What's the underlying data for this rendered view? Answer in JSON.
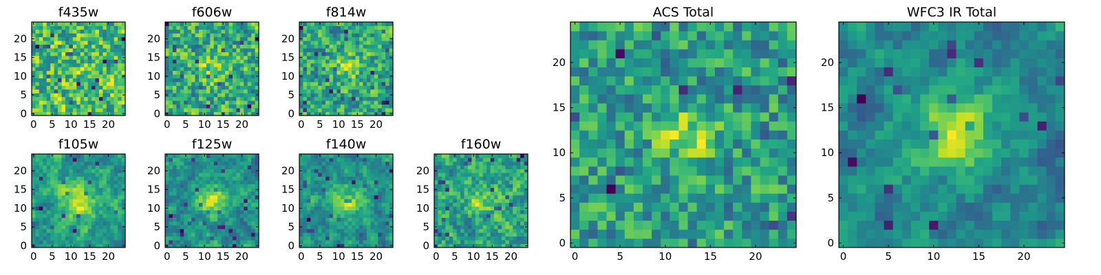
{
  "chart_data": [
    {
      "type": "heatmap",
      "title": "f435w",
      "xticks": [
        "0",
        "5",
        "10",
        "15",
        "20"
      ],
      "yticks": [
        "0",
        "5",
        "10",
        "15",
        "20"
      ],
      "xlim": [
        -0.5,
        24.5
      ],
      "ylim": [
        -0.5,
        24.5
      ],
      "grid_size": 25,
      "colormap": "viridis",
      "center_strength": 0.05,
      "center_width": 3.0,
      "smooth": 0.3,
      "seed": 11
    },
    {
      "type": "heatmap",
      "title": "f606w",
      "xticks": [
        "0",
        "5",
        "10",
        "15",
        "20"
      ],
      "yticks": [
        "0",
        "5",
        "10",
        "15",
        "20"
      ],
      "xlim": [
        -0.5,
        24.5
      ],
      "ylim": [
        -0.5,
        24.5
      ],
      "grid_size": 25,
      "colormap": "viridis",
      "center_strength": 0.35,
      "center_width": 2.5,
      "smooth": 0.3,
      "seed": 23
    },
    {
      "type": "heatmap",
      "title": "f814w",
      "xticks": [
        "0",
        "5",
        "10",
        "15",
        "20"
      ],
      "yticks": [
        "0",
        "5",
        "10",
        "15",
        "20"
      ],
      "xlim": [
        -0.5,
        24.5
      ],
      "ylim": [
        -0.5,
        24.5
      ],
      "grid_size": 25,
      "colormap": "viridis",
      "center_strength": 0.35,
      "center_width": 2.5,
      "smooth": 0.3,
      "seed": 37
    },
    {
      "type": "heatmap",
      "title": "f105w",
      "xticks": [
        "0",
        "5",
        "10",
        "15",
        "20"
      ],
      "yticks": [
        "0",
        "5",
        "10",
        "15",
        "20"
      ],
      "xlim": [
        -0.5,
        24.5
      ],
      "ylim": [
        -0.5,
        24.5
      ],
      "grid_size": 25,
      "colormap": "viridis",
      "center_strength": 0.6,
      "center_width": 3.5,
      "smooth": 0.65,
      "seed": 41
    },
    {
      "type": "heatmap",
      "title": "f125w",
      "xticks": [
        "0",
        "5",
        "10",
        "15",
        "20"
      ],
      "yticks": [
        "0",
        "5",
        "10",
        "15",
        "20"
      ],
      "xlim": [
        -0.5,
        24.5
      ],
      "ylim": [
        -0.5,
        24.5
      ],
      "grid_size": 25,
      "colormap": "viridis",
      "center_strength": 0.55,
      "center_width": 3.0,
      "smooth": 0.65,
      "seed": 53
    },
    {
      "type": "heatmap",
      "title": "f140w",
      "xticks": [
        "0",
        "5",
        "10",
        "15",
        "20"
      ],
      "yticks": [
        "0",
        "5",
        "10",
        "15",
        "20"
      ],
      "xlim": [
        -0.5,
        24.5
      ],
      "ylim": [
        -0.5,
        24.5
      ],
      "grid_size": 25,
      "colormap": "viridis",
      "center_strength": 0.45,
      "center_width": 3.0,
      "smooth": 0.65,
      "seed": 67
    },
    {
      "type": "heatmap",
      "title": "f160w",
      "xticks": [
        "0",
        "5",
        "10",
        "15",
        "20"
      ],
      "yticks": [
        "0",
        "5",
        "10",
        "15",
        "20"
      ],
      "xlim": [
        -0.5,
        24.5
      ],
      "ylim": [
        -0.5,
        24.5
      ],
      "grid_size": 25,
      "colormap": "viridis",
      "center_strength": 0.4,
      "center_width": 2.5,
      "smooth": 0.5,
      "seed": 79
    },
    {
      "type": "heatmap",
      "title": "ACS Total",
      "xticks": [
        "0",
        "5",
        "10",
        "15",
        "20"
      ],
      "yticks": [
        "0",
        "5",
        "10",
        "15",
        "20"
      ],
      "xlim": [
        -0.5,
        24.5
      ],
      "ylim": [
        -0.5,
        24.5
      ],
      "grid_size": 25,
      "colormap": "viridis",
      "center_strength": 0.55,
      "center_width": 2.2,
      "smooth": 0.25,
      "seed": 97
    },
    {
      "type": "heatmap",
      "title": "WFC3 IR Total",
      "xticks": [
        "0",
        "5",
        "10",
        "15",
        "20"
      ],
      "yticks": [
        "0",
        "5",
        "10",
        "15",
        "20"
      ],
      "xlim": [
        -0.5,
        24.5
      ],
      "ylim": [
        -0.5,
        24.5
      ],
      "grid_size": 25,
      "colormap": "viridis",
      "center_strength": 0.8,
      "center_width": 2.8,
      "smooth": 0.7,
      "seed": 113
    }
  ]
}
